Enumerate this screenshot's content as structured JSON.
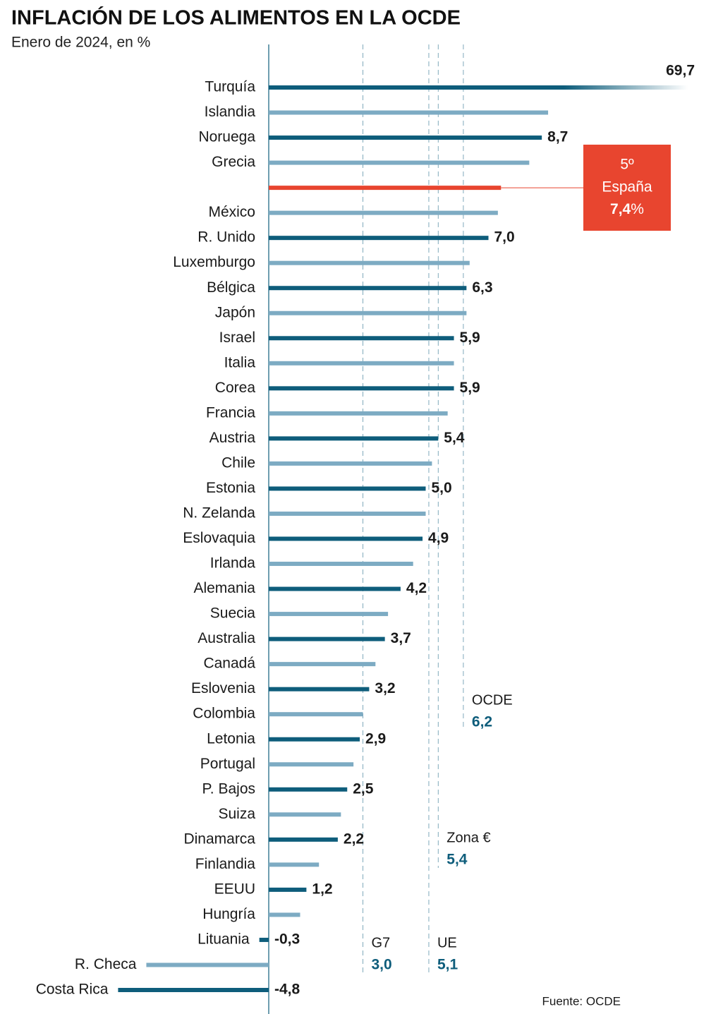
{
  "chart_data": {
    "type": "barh",
    "title": "INFLACIÓN DE LOS ALIMENTOS EN LA OCDE",
    "subtitle": "Enero de 2024, en %",
    "source": "Fuente: OCDE",
    "categories": [
      "Turquía",
      "Islandia",
      "Noruega",
      "Grecia",
      null,
      "México",
      "R. Unido",
      "Luxemburgo",
      "Bélgica",
      "Japón",
      "Israel",
      "Italia",
      "Corea",
      "Francia",
      "Austria",
      "Chile",
      "Estonia",
      "N. Zelanda",
      "Eslovaquia",
      "Irlanda",
      "Alemania",
      "Suecia",
      "Australia",
      "Canadá",
      "Eslovenia",
      "Colombia",
      "Letonia",
      "Portugal",
      "P. Bajos",
      "Suiza",
      "Dinamarca",
      "Finlandia",
      "EEUU",
      "Hungría",
      "Lituania",
      "R. Checa",
      "Costa Rica"
    ],
    "values": [
      69.7,
      8.9,
      8.7,
      8.3,
      7.4,
      7.3,
      7.0,
      6.4,
      6.3,
      6.3,
      5.9,
      5.9,
      5.9,
      5.7,
      5.4,
      5.2,
      5.0,
      5.0,
      4.9,
      4.6,
      4.2,
      3.8,
      3.7,
      3.4,
      3.2,
      3.0,
      2.9,
      2.7,
      2.5,
      2.3,
      2.2,
      1.6,
      1.2,
      1.0,
      -0.3,
      -3.9,
      -4.8
    ],
    "value_labels": [
      "69,7",
      null,
      "8,7",
      null,
      "7,4",
      null,
      "7,0",
      null,
      "6,3",
      null,
      "5,9",
      null,
      "5,9",
      null,
      "5,4",
      null,
      "5,0",
      null,
      "4,9",
      null,
      "4,2",
      null,
      "3,7",
      null,
      "3,2",
      null,
      "2,9",
      null,
      "2,5",
      null,
      "2,2",
      null,
      "1,2",
      null,
      "-0,3",
      null,
      "-4,8"
    ],
    "colors": [
      "#0e5d7b",
      "#7dabc3",
      "#0e5d7b",
      "#7dabc3",
      "#e8452f",
      "#7dabc3",
      "#0e5d7b",
      "#7dabc3",
      "#0e5d7b",
      "#7dabc3",
      "#0e5d7b",
      "#7dabc3",
      "#0e5d7b",
      "#7dabc3",
      "#0e5d7b",
      "#7dabc3",
      "#0e5d7b",
      "#7dabc3",
      "#0e5d7b",
      "#7dabc3",
      "#0e5d7b",
      "#7dabc3",
      "#0e5d7b",
      "#7dabc3",
      "#0e5d7b",
      "#7dabc3",
      "#0e5d7b",
      "#7dabc3",
      "#0e5d7b",
      "#7dabc3",
      "#0e5d7b",
      "#7dabc3",
      "#0e5d7b",
      "#7dabc3",
      "#0e5d7b",
      "#7dabc3",
      "#0e5d7b"
    ],
    "xlim": [
      -5,
      13
    ],
    "callout": {
      "rank": "5º",
      "name": "España",
      "unit": "%"
    },
    "reference_lines": [
      {
        "label": "G7",
        "value": 3.0,
        "value_label": "3,0"
      },
      {
        "label": "UE",
        "value": 5.1,
        "value_label": "5,1"
      },
      {
        "label": "Zona €",
        "value": 5.4,
        "value_label": "5,4"
      },
      {
        "label": "OCDE",
        "value": 6.2,
        "value_label": "6,2"
      }
    ]
  }
}
